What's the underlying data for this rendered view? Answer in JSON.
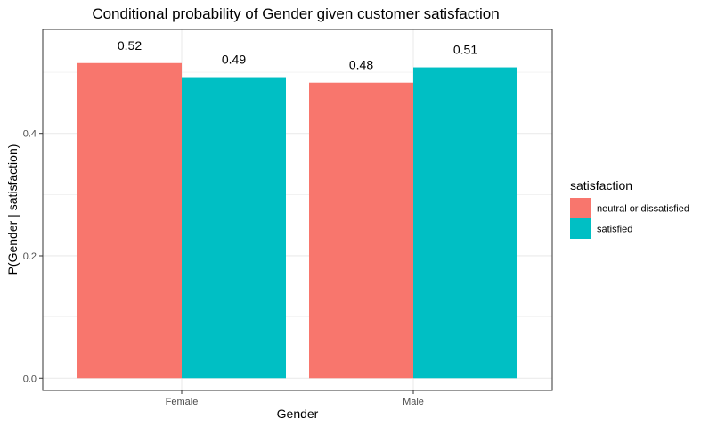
{
  "chart_data": {
    "type": "bar",
    "title": "Conditional probability of Gender given customer satisfaction",
    "xlabel": "Gender",
    "ylabel": "P(Gender | satisfaction)",
    "categories": [
      "Female",
      "Male"
    ],
    "series": [
      {
        "name": "neutral or dissatisfied",
        "values": [
          0.515,
          0.483
        ],
        "labels": [
          "0.52",
          "0.48"
        ],
        "color": "#F8766D"
      },
      {
        "name": "satisfied",
        "values": [
          0.492,
          0.508
        ],
        "labels": [
          "0.49",
          "0.51"
        ],
        "color": "#00BFC4"
      }
    ],
    "yticks": [
      0.0,
      0.2,
      0.4
    ],
    "ytick_labels": [
      "0.0",
      "0.2",
      "0.4"
    ],
    "ylim": [
      -0.02,
      0.57
    ],
    "grid": true,
    "legend": {
      "title": "satisfaction",
      "position": "right"
    }
  }
}
